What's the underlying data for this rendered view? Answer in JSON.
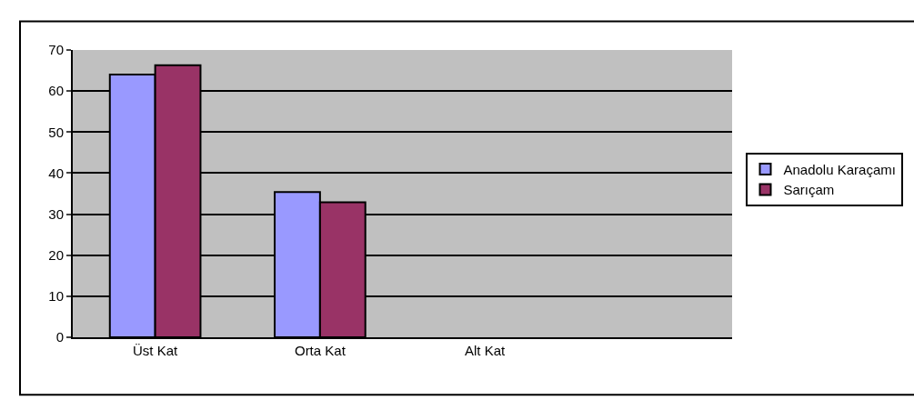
{
  "chart_data": {
    "type": "bar",
    "categories": [
      "Üst Kat",
      "Orta Kat",
      "Alt Kat",
      null
    ],
    "series": [
      {
        "name": "Anadolu Karaçamı",
        "color": "#9999ff",
        "values": [
          64,
          35.4,
          null,
          null
        ]
      },
      {
        "name": "Sarıçam",
        "color": "#993366",
        "values": [
          66.3,
          32.9,
          null,
          null
        ]
      }
    ],
    "ylim": [
      0,
      70
    ],
    "yticks": [
      0,
      10,
      20,
      30,
      40,
      50,
      60,
      70
    ],
    "grid": "y",
    "legend": "right"
  }
}
